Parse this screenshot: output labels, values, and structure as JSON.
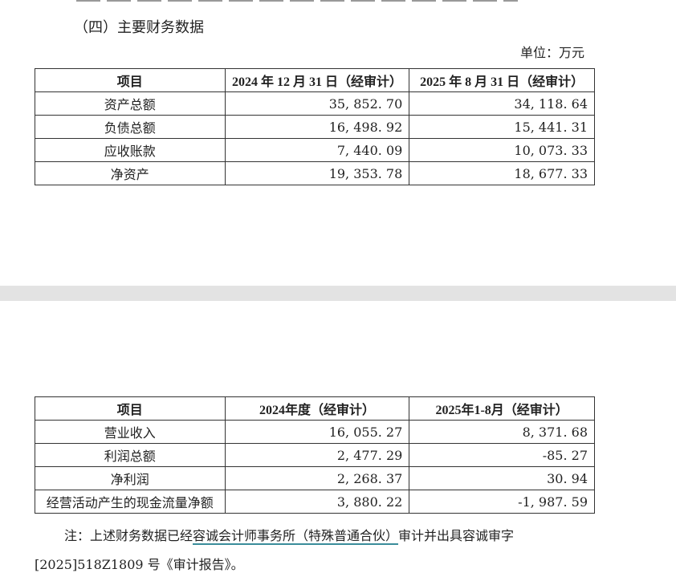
{
  "section_heading": "（四）主要财务数据",
  "unit_label": "单位：万元",
  "balance_table": {
    "headers": [
      "项目",
      "2024 年 12 月 31 日（经审计）",
      "2025 年 8 月 31 日（经审计）"
    ],
    "rows": [
      [
        "资产总额",
        "35, 852. 70",
        "34, 118. 64"
      ],
      [
        "负债总额",
        "16, 498. 92",
        "15, 441. 31"
      ],
      [
        "应收账款",
        "7, 440. 09",
        "10, 073. 33"
      ],
      [
        "净资产",
        "19, 353. 78",
        "18, 677. 33"
      ]
    ]
  },
  "income_table": {
    "headers": [
      "项目",
      "2024年度（经审计）",
      "2025年1-8月（经审计）"
    ],
    "rows": [
      [
        "营业收入",
        "16, 055. 27",
        "8, 371. 68"
      ],
      [
        "利润总额",
        "2, 477. 29",
        "-85. 27"
      ],
      [
        "净利润",
        "2, 268. 37",
        "30. 94"
      ],
      [
        "经营活动产生的现金流量净额",
        "3, 880. 22",
        "-1, 987. 59"
      ]
    ]
  },
  "note": {
    "prefix": "注：上述财务数据已经",
    "linked_text": "容诚会计师事务所（特殊普通合伙）",
    "suffix": "审计并出具容诚审字",
    "line2": "[2025]518Z1809 号《审计报告》。"
  }
}
